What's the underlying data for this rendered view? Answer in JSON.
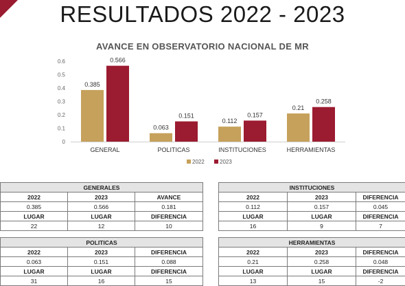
{
  "page_title": "RESULTADOS 2022 - 2023",
  "colors": {
    "y2022": "#c6a15b",
    "y2023": "#9b1b30",
    "corner": "#9b1b30"
  },
  "chart_data": {
    "type": "bar",
    "title": "AVANCE EN OBSERVATORIO NACIONAL DE MR",
    "categories": [
      "GENERAL",
      "POLITICAS",
      "INSTITUCIONES",
      "HERRAMIENTAS"
    ],
    "series": [
      {
        "name": "2022",
        "values": [
          0.385,
          0.063,
          0.112,
          0.21
        ],
        "labels": [
          "0.385",
          "0.063",
          "0.112",
          "0.21"
        ]
      },
      {
        "name": "2023",
        "values": [
          0.566,
          0.151,
          0.157,
          0.258
        ],
        "labels": [
          "0.566",
          "0.151",
          "0.157",
          "0.258"
        ]
      }
    ],
    "ylim": [
      0,
      0.6
    ],
    "yticks": [
      "0",
      "0.1",
      "0.2",
      "0.3",
      "0.4",
      "0.5",
      "0.6"
    ],
    "grid": false,
    "legend": "bottom"
  },
  "tables": {
    "generales": {
      "caption": "GENERALES",
      "rows": [
        [
          "2022",
          "2023",
          "AVANCE"
        ],
        [
          "0.385",
          "0.566",
          "0.181"
        ],
        [
          "LUGAR",
          "LUGAR",
          "DIFERENCIA"
        ],
        [
          "22",
          "12",
          "10"
        ]
      ]
    },
    "instituciones": {
      "caption": "INSTITUCIONES",
      "rows": [
        [
          "2022",
          "2023",
          "DIFERENCIA"
        ],
        [
          "0.112",
          "0.157",
          "0.045"
        ],
        [
          "LUGAR",
          "LUGAR",
          "DIFERENCIA"
        ],
        [
          "16",
          "9",
          "7"
        ]
      ]
    },
    "politicas": {
      "caption": "POLITICAS",
      "rows": [
        [
          "2022",
          "2023",
          "DIFERENCIA"
        ],
        [
          "0.063",
          "0.151",
          "0.088"
        ],
        [
          "LUGAR",
          "LUGAR",
          "DIFERENCIA"
        ],
        [
          "31",
          "16",
          "15"
        ]
      ]
    },
    "herramientas": {
      "caption": "HERRAMIENTAS",
      "rows": [
        [
          "2022",
          "2023",
          "DIFERENCIA"
        ],
        [
          "0.21",
          "0.258",
          "0.048"
        ],
        [
          "LUGAR",
          "LUGAR",
          "DIFERENCIA"
        ],
        [
          "13",
          "15",
          "-2"
        ]
      ]
    }
  }
}
